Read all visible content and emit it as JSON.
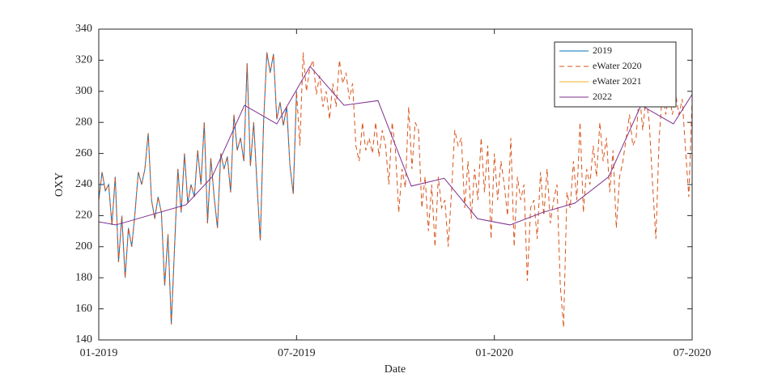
{
  "chart_data": {
    "type": "line",
    "xlabel": "Date",
    "ylabel": "OXY",
    "xlim": [
      0,
      18
    ],
    "ylim": [
      140,
      340
    ],
    "xticks": [
      {
        "value": 0,
        "label": "01-2019"
      },
      {
        "value": 6,
        "label": "07-2019"
      },
      {
        "value": 12,
        "label": "01-2020"
      },
      {
        "value": 18,
        "label": "07-2020"
      }
    ],
    "yticks": [
      140,
      160,
      180,
      200,
      220,
      240,
      260,
      280,
      300,
      320,
      340
    ],
    "grid": false,
    "legend": "northeast",
    "series": [
      {
        "name": "2019",
        "color": "#0072bd",
        "line_style": "solid",
        "x": [
          0,
          0.1,
          0.2,
          0.3,
          0.4,
          0.5,
          0.6,
          0.7,
          0.8,
          0.9,
          1,
          1.1,
          1.2,
          1.3,
          1.4,
          1.5,
          1.6,
          1.7,
          1.8,
          1.9,
          2,
          2.1,
          2.2,
          2.3,
          2.4,
          2.5,
          2.6,
          2.7,
          2.8,
          2.9,
          3,
          3.1,
          3.2,
          3.3,
          3.4,
          3.5,
          3.6,
          3.7,
          3.8,
          3.9,
          4,
          4.1,
          4.2,
          4.3,
          4.4,
          4.5,
          4.6,
          4.7,
          4.8,
          4.9,
          5,
          5.1,
          5.2,
          5.3,
          5.4,
          5.5,
          5.6,
          5.7,
          5.8,
          5.9,
          6
        ],
        "values": [
          230,
          248,
          236,
          240,
          214,
          245,
          190,
          220,
          180,
          212,
          200,
          222,
          248,
          240,
          250,
          273,
          230,
          218,
          232,
          222,
          175,
          208,
          150,
          200,
          250,
          222,
          260,
          228,
          240,
          232,
          262,
          240,
          280,
          215,
          257,
          232,
          212,
          260,
          250,
          258,
          235,
          285,
          262,
          270,
          255,
          318,
          252,
          280,
          240,
          204,
          280,
          325,
          312,
          324,
          282,
          293,
          278,
          290,
          252,
          234,
          300
        ]
      },
      {
        "name": "eWater 2020",
        "color": "#d95319",
        "line_style": "dashed",
        "x": [
          0,
          0.1,
          0.2,
          0.3,
          0.4,
          0.5,
          0.6,
          0.7,
          0.8,
          0.9,
          1,
          1.1,
          1.2,
          1.3,
          1.4,
          1.5,
          1.6,
          1.7,
          1.8,
          1.9,
          2,
          2.1,
          2.2,
          2.3,
          2.4,
          2.5,
          2.6,
          2.7,
          2.8,
          2.9,
          3,
          3.1,
          3.2,
          3.3,
          3.4,
          3.5,
          3.6,
          3.7,
          3.8,
          3.9,
          4,
          4.1,
          4.2,
          4.3,
          4.4,
          4.5,
          4.6,
          4.7,
          4.8,
          4.9,
          5,
          5.1,
          5.2,
          5.3,
          5.4,
          5.5,
          5.6,
          5.7,
          5.8,
          5.9,
          6,
          6.1,
          6.2,
          6.3,
          6.4,
          6.5,
          6.6,
          6.7,
          6.8,
          6.9,
          7,
          7.1,
          7.2,
          7.3,
          7.4,
          7.5,
          7.6,
          7.7,
          7.8,
          7.9,
          8,
          8.1,
          8.2,
          8.3,
          8.4,
          8.5,
          8.6,
          8.7,
          8.8,
          8.9,
          9,
          9.1,
          9.2,
          9.3,
          9.4,
          9.5,
          9.6,
          9.7,
          9.8,
          9.9,
          10,
          10.1,
          10.2,
          10.3,
          10.4,
          10.5,
          10.6,
          10.7,
          10.8,
          10.9,
          11,
          11.1,
          11.2,
          11.3,
          11.4,
          11.5,
          11.6,
          11.7,
          11.8,
          11.9,
          12,
          12.1,
          12.2,
          12.3,
          12.4,
          12.5,
          12.6,
          12.7,
          12.8,
          12.9,
          13,
          13.1,
          13.2,
          13.3,
          13.4,
          13.5,
          13.6,
          13.7,
          13.8,
          13.9,
          14,
          14.1,
          14.2,
          14.3,
          14.4,
          14.5,
          14.6,
          14.7,
          14.8,
          14.9,
          15,
          15.1,
          15.2,
          15.3,
          15.4,
          15.5,
          15.6,
          15.7,
          15.8,
          15.9,
          16,
          16.1,
          16.2,
          16.3,
          16.4,
          16.5,
          16.6,
          16.7,
          16.8,
          16.9,
          17,
          17.1,
          17.2,
          17.3,
          17.4,
          17.5,
          17.6,
          17.7,
          17.8,
          17.9,
          18
        ],
        "values": [
          230,
          248,
          236,
          240,
          214,
          245,
          190,
          220,
          180,
          212,
          200,
          222,
          248,
          240,
          250,
          273,
          230,
          218,
          232,
          222,
          175,
          208,
          150,
          200,
          250,
          222,
          260,
          228,
          240,
          232,
          262,
          240,
          280,
          215,
          257,
          232,
          212,
          260,
          250,
          258,
          235,
          285,
          262,
          270,
          255,
          318,
          252,
          280,
          240,
          204,
          280,
          325,
          312,
          324,
          282,
          293,
          278,
          290,
          252,
          234,
          300,
          265,
          325,
          300,
          315,
          320,
          298,
          310,
          290,
          300,
          282,
          305,
          290,
          320,
          305,
          312,
          295,
          305,
          265,
          255,
          280,
          262,
          270,
          260,
          280,
          258,
          275,
          265,
          240,
          280,
          262,
          222,
          250,
          238,
          290,
          250,
          280,
          275,
          225,
          245,
          210,
          240,
          200,
          245,
          225,
          230,
          200,
          235,
          275,
          265,
          270,
          225,
          255,
          218,
          250,
          230,
          270,
          235,
          265,
          205,
          260,
          230,
          255,
          240,
          220,
          270,
          200,
          245,
          230,
          240,
          178,
          225,
          230,
          205,
          248,
          220,
          250,
          215,
          230,
          240,
          175,
          148,
          235,
          225,
          255,
          230,
          280,
          222,
          250,
          240,
          265,
          245,
          280,
          255,
          270,
          235,
          262,
          212,
          245,
          255,
          270,
          285,
          265,
          270,
          300,
          275,
          296,
          280,
          240,
          205,
          270,
          300,
          285,
          300,
          285,
          298,
          285,
          295,
          262,
          232,
          295
        ]
      },
      {
        "name": "eWater 2021",
        "color": "#edb120",
        "line_style": "solid",
        "x": [],
        "values": []
      },
      {
        "name": "2022",
        "color": "#7e2f8e",
        "line_style": "solid",
        "x": [
          0,
          0.52,
          2.65,
          3.44,
          4.42,
          5.4,
          6.41,
          7.44,
          8.47,
          9.48,
          10.48,
          11.49,
          12.48,
          13.46,
          14.44,
          15.47,
          16.45,
          17.43,
          18
        ],
        "values": [
          216,
          214,
          227,
          245,
          291,
          279,
          316,
          291,
          294,
          239,
          244,
          218,
          214,
          222,
          228,
          245,
          291,
          279,
          298
        ]
      }
    ]
  }
}
